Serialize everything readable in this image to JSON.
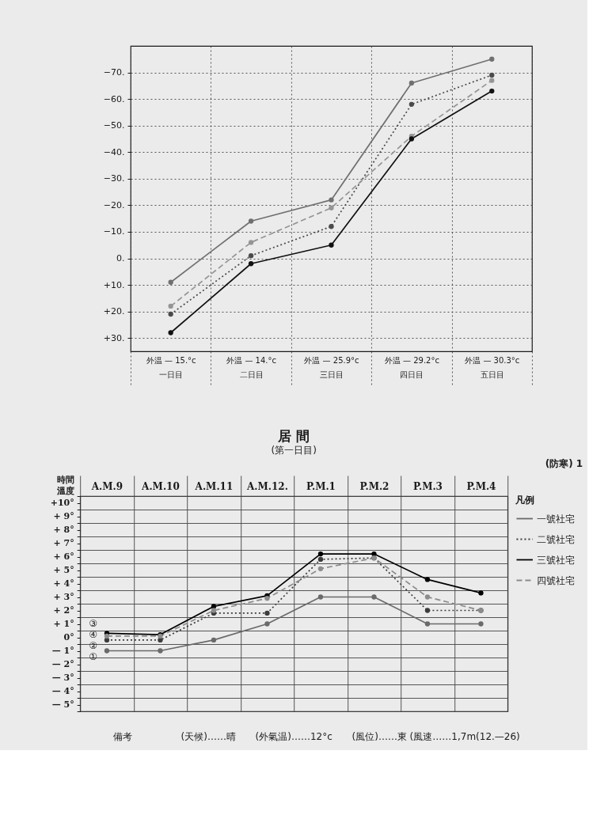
{
  "chart_data": [
    {
      "type": "line",
      "categories": [
        "外温 — 15.°c\n一日目",
        "外温 — 14.°c\n二日目",
        "外温 — 25.9°c\n三日目",
        "外温 — 29.2°c\n四日目",
        "外温 — 30.3°c\n五日目"
      ],
      "ylim": [
        35,
        -80
      ],
      "yticks": [
        {
          "value": -70,
          "label": "−70."
        },
        {
          "value": -60,
          "label": "−60."
        },
        {
          "value": -50,
          "label": "−50."
        },
        {
          "value": -40,
          "label": "−40."
        },
        {
          "value": -30,
          "label": "−30."
        },
        {
          "value": -20,
          "label": "−20."
        },
        {
          "value": -10,
          "label": "−10."
        },
        {
          "value": 0,
          "label": "0."
        },
        {
          "value": 10,
          "label": "+10."
        },
        {
          "value": 20,
          "label": "+20."
        },
        {
          "value": 30,
          "label": "+30."
        }
      ],
      "grid": true,
      "marker": "circle",
      "series": [
        {
          "color": "#707070",
          "line_style": "solid",
          "values": [
            9,
            -14,
            -22,
            -66,
            -75
          ]
        },
        {
          "color": "#4a4a4a",
          "line_style": "dotted",
          "values": [
            21,
            -1,
            -12,
            -58,
            -69
          ]
        },
        {
          "color": "#959595",
          "line_style": "dashed",
          "values": [
            18,
            -6,
            -19,
            -46,
            -67
          ]
        },
        {
          "color": "#111111",
          "line_style": "solid",
          "values": [
            28,
            2,
            -5,
            -45,
            -63
          ]
        }
      ]
    },
    {
      "type": "line",
      "title": "居 間",
      "subtitle": "(第一日目)",
      "xlabel": "時間",
      "ylabel": "溫度",
      "legend_title": "凡例",
      "legend": "right",
      "grid": true,
      "marker": "circle",
      "categories": [
        "A.M.9",
        "A.M.10",
        "A.M.11",
        "A.M.12.",
        "P.M.1",
        "P.M.2",
        "P.M.3",
        "P.M.4"
      ],
      "ylim": [
        -5.5,
        10.5
      ],
      "yticks": [
        {
          "value": 10.5,
          "label": null
        },
        {
          "value": 10,
          "label": "+10°"
        },
        {
          "value": 9.5,
          "label": null
        },
        {
          "value": 9,
          "label": "+ 9°"
        },
        {
          "value": 8.5,
          "label": null
        },
        {
          "value": 8,
          "label": "+ 8°"
        },
        {
          "value": 7.5,
          "label": null
        },
        {
          "value": 7,
          "label": "+ 7°"
        },
        {
          "value": 6.5,
          "label": null
        },
        {
          "value": 6,
          "label": "+ 6°"
        },
        {
          "value": 5.5,
          "label": null
        },
        {
          "value": 5,
          "label": "+ 5°"
        },
        {
          "value": 4.5,
          "label": null
        },
        {
          "value": 4,
          "label": "+ 4°"
        },
        {
          "value": 3.5,
          "label": null
        },
        {
          "value": 3,
          "label": "+ 3°"
        },
        {
          "value": 2.5,
          "label": null
        },
        {
          "value": 2,
          "label": "+ 2°"
        },
        {
          "value": 1.5,
          "label": null
        },
        {
          "value": 1,
          "label": "+ 1°"
        },
        {
          "value": 0.5,
          "label": null
        },
        {
          "value": 0,
          "label": "0°"
        },
        {
          "value": -0.5,
          "label": null
        },
        {
          "value": -1,
          "label": "— 1°"
        },
        {
          "value": -1.5,
          "label": null
        },
        {
          "value": -2,
          "label": "— 2°"
        },
        {
          "value": -2.5,
          "label": null
        },
        {
          "value": -3,
          "label": "— 3°"
        },
        {
          "value": -3.5,
          "label": null
        },
        {
          "value": -4,
          "label": "— 4°"
        },
        {
          "value": -4.5,
          "label": null
        },
        {
          "value": -5,
          "label": "— 5°"
        },
        {
          "value": -5.5,
          "label": null
        }
      ],
      "series": [
        {
          "name": "一號社宅",
          "color": "#6a6a6a",
          "line_style": "solid",
          "values": [
            -1,
            -1,
            -0.2,
            1,
            3,
            3,
            1,
            1
          ]
        },
        {
          "name": "二號社宅",
          "color": "#3c3c3c",
          "line_style": "dotted",
          "values": [
            -0.2,
            -0.2,
            1.8,
            1.8,
            5.8,
            5.9,
            2,
            2
          ]
        },
        {
          "name": "三號社宅",
          "color": "#000000",
          "line_style": "solid",
          "values": [
            0.3,
            0.2,
            2.3,
            3.1,
            6.2,
            6.2,
            4.3,
            3.3
          ]
        },
        {
          "name": "四號社宅",
          "color": "#8c8c8c",
          "line_style": "dashed",
          "values": [
            0.1,
            0.1,
            2,
            2.9,
            5.1,
            5.9,
            3,
            2
          ]
        }
      ],
      "annotations": [
        "(防寒) 1",
        "備考",
        "(天候)……晴",
        "(外氣温)……12°c",
        "(風位)……東",
        "(風速……1,7m(12.—26)",
        {
          "text": "①",
          "x": "A.M.9",
          "y": -1
        },
        {
          "text": "②",
          "x": "A.M.9",
          "y": -0.2
        },
        {
          "text": "③",
          "x": "A.M.9",
          "y": 0.3
        },
        {
          "text": "④",
          "x": "A.M.9",
          "y": 0.1
        }
      ]
    }
  ]
}
